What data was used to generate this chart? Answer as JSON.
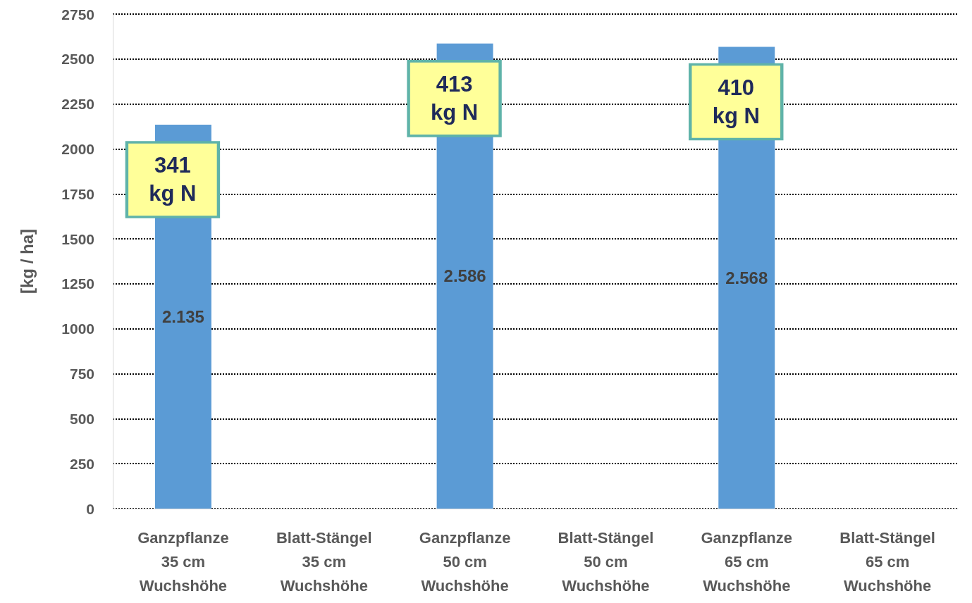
{
  "chart_data": {
    "type": "bar",
    "ylabel": "[kg / ha]",
    "categories": [
      "Ganzpflanze\n35 cm\nWuchshöhe",
      "Blatt-Stängel\n35 cm\nWuchshöhe",
      "Ganzpflanze\n50 cm\nWuchshöhe",
      "Blatt-Stängel\n50 cm\nWuchshöhe",
      "Ganzpflanze\n65 cm\nWuchshöhe",
      "Blatt-Stängel\n65 cm\nWuchshöhe"
    ],
    "values": [
      2135,
      null,
      2586,
      null,
      2568,
      null
    ],
    "value_labels": [
      "2.135",
      null,
      "2.586",
      null,
      "2.568",
      null
    ],
    "color": "#5b9bd5",
    "ylim": [
      0,
      2750
    ],
    "yticks": [
      0,
      250,
      500,
      750,
      1000,
      1250,
      1500,
      1750,
      2000,
      2250,
      2500,
      2750
    ],
    "grid": "y",
    "line_style": "dotted",
    "annotations": [
      "341\nkg N",
      "413\nkg N",
      "410\nkg N"
    ]
  }
}
